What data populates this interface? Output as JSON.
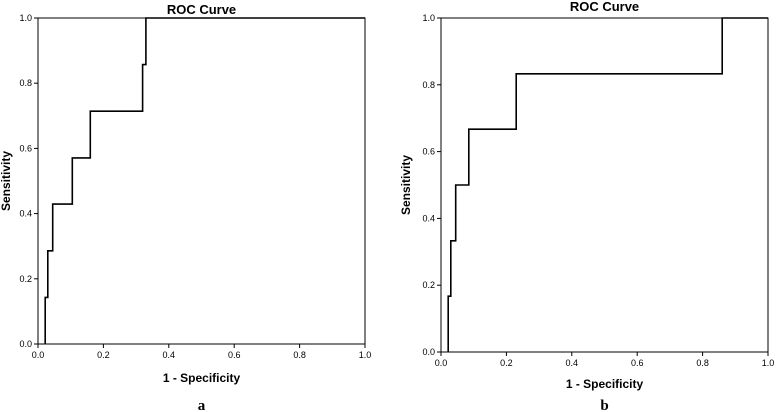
{
  "chart_data": [
    {
      "type": "line",
      "title": "ROC Curve",
      "xlabel": "1 - Specificity",
      "ylabel": "Sensitivity",
      "xlim": [
        0,
        1
      ],
      "ylim": [
        0,
        1
      ],
      "xticks": [
        "0.0",
        "0.2",
        "0.4",
        "0.6",
        "0.8",
        "1.0"
      ],
      "yticks": [
        "0.0",
        "0.2",
        "0.4",
        "0.6",
        "0.8",
        "1.0"
      ],
      "panel_label": "a",
      "grid": false,
      "series": [
        {
          "x": [
            0.022,
            0.022,
            0.03,
            0.03,
            0.045,
            0.045,
            0.105,
            0.105,
            0.16,
            0.16,
            0.32,
            0.32,
            0.33,
            0.33,
            1.0
          ],
          "y": [
            0.0,
            0.143,
            0.143,
            0.286,
            0.286,
            0.429,
            0.429,
            0.571,
            0.571,
            0.714,
            0.714,
            0.857,
            0.857,
            1.0,
            1.0
          ]
        }
      ]
    },
    {
      "type": "line",
      "title": "ROC Curve",
      "xlabel": "1 - Specificity",
      "ylabel": "Sensitivity",
      "xlim": [
        0,
        1
      ],
      "ylim": [
        0,
        1
      ],
      "xticks": [
        "0.0",
        "0.2",
        "0.4",
        "0.6",
        "0.8",
        "1.0"
      ],
      "yticks": [
        "0.0",
        "0.2",
        "0.4",
        "0.6",
        "0.8",
        "1.0"
      ],
      "panel_label": "b",
      "grid": false,
      "series": [
        {
          "x": [
            0.022,
            0.022,
            0.03,
            0.03,
            0.045,
            0.045,
            0.085,
            0.085,
            0.23,
            0.23,
            0.86,
            0.86,
            1.0
          ],
          "y": [
            0.0,
            0.167,
            0.167,
            0.333,
            0.333,
            0.5,
            0.5,
            0.667,
            0.667,
            0.833,
            0.833,
            1.0,
            1.0
          ]
        }
      ]
    }
  ]
}
